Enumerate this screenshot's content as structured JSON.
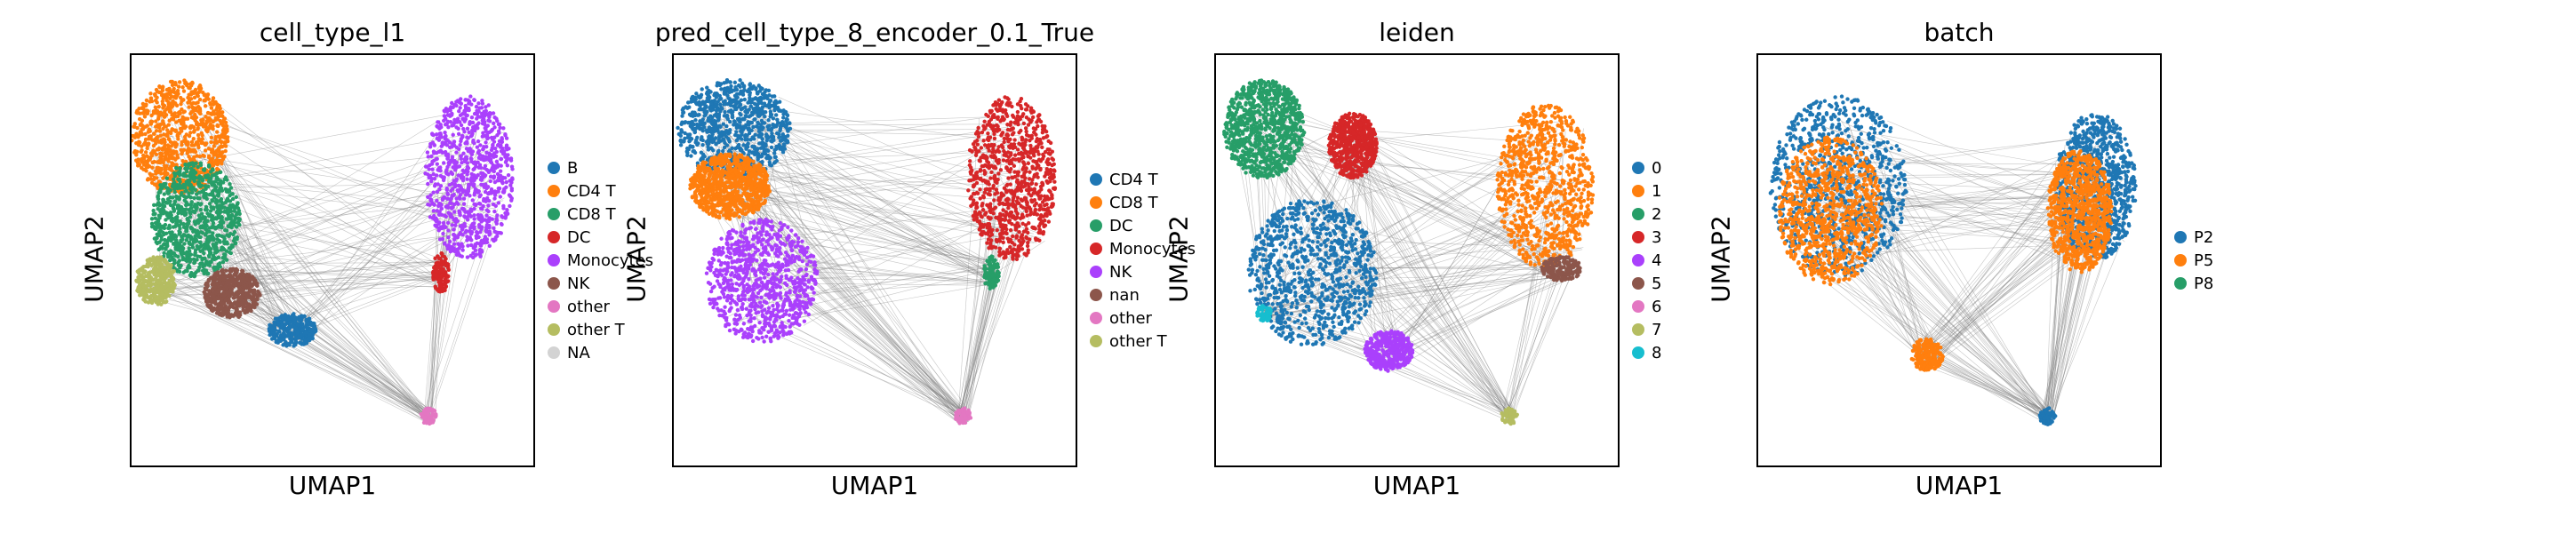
{
  "chart_data": [
    {
      "type": "scatter",
      "title": "cell_type_l1",
      "xlabel": "UMAP1",
      "ylabel": "UMAP2",
      "grid": false,
      "legend_position": "right",
      "legend": [
        {
          "label": "B",
          "color": "#1f77b4"
        },
        {
          "label": "CD4 T",
          "color": "#ff7f0e"
        },
        {
          "label": "CD8 T",
          "color": "#279e68"
        },
        {
          "label": "DC",
          "color": "#d62728"
        },
        {
          "label": "Monocytes",
          "color": "#aa40fc"
        },
        {
          "label": "NK",
          "color": "#8c564b"
        },
        {
          "label": "other",
          "color": "#e377c2"
        },
        {
          "label": "other T",
          "color": "#b5bd61"
        },
        {
          "label": "NA",
          "color": "#d3d3d3"
        }
      ],
      "clusters": [
        {
          "category": "CD4 T",
          "cx": 0.12,
          "cy": 0.8,
          "rx": 0.12,
          "ry": 0.14
        },
        {
          "category": "CD8 T",
          "cx": 0.16,
          "cy": 0.6,
          "rx": 0.11,
          "ry": 0.14
        },
        {
          "category": "NK",
          "cx": 0.25,
          "cy": 0.42,
          "rx": 0.07,
          "ry": 0.06
        },
        {
          "category": "other T",
          "cx": 0.06,
          "cy": 0.45,
          "rx": 0.05,
          "ry": 0.06
        },
        {
          "category": "B",
          "cx": 0.4,
          "cy": 0.33,
          "rx": 0.06,
          "ry": 0.04
        },
        {
          "category": "Monocytes",
          "cx": 0.84,
          "cy": 0.7,
          "rx": 0.11,
          "ry": 0.2
        },
        {
          "category": "DC",
          "cx": 0.77,
          "cy": 0.47,
          "rx": 0.02,
          "ry": 0.05
        },
        {
          "category": "other",
          "cx": 0.74,
          "cy": 0.12,
          "rx": 0.02,
          "ry": 0.02
        }
      ]
    },
    {
      "type": "scatter",
      "title": "pred_cell_type_8_encoder_0.1_True",
      "xlabel": "UMAP1",
      "ylabel": "UMAP2",
      "grid": false,
      "legend_position": "right",
      "legend": [
        {
          "label": "CD4 T",
          "color": "#1f77b4"
        },
        {
          "label": "CD8 T",
          "color": "#ff7f0e"
        },
        {
          "label": "DC",
          "color": "#279e68"
        },
        {
          "label": "Monocytes",
          "color": "#d62728"
        },
        {
          "label": "NK",
          "color": "#aa40fc"
        },
        {
          "label": "nan",
          "color": "#8c564b"
        },
        {
          "label": "other",
          "color": "#e377c2"
        },
        {
          "label": "other T",
          "color": "#b5bd61"
        }
      ],
      "clusters": [
        {
          "category": "CD4 T",
          "cx": 0.15,
          "cy": 0.82,
          "rx": 0.14,
          "ry": 0.12
        },
        {
          "category": "CD8 T",
          "cx": 0.14,
          "cy": 0.68,
          "rx": 0.1,
          "ry": 0.08
        },
        {
          "category": "NK",
          "cx": 0.22,
          "cy": 0.45,
          "rx": 0.14,
          "ry": 0.15
        },
        {
          "category": "Monocytes",
          "cx": 0.84,
          "cy": 0.7,
          "rx": 0.11,
          "ry": 0.2
        },
        {
          "category": "DC",
          "cx": 0.79,
          "cy": 0.47,
          "rx": 0.02,
          "ry": 0.04
        },
        {
          "category": "other",
          "cx": 0.72,
          "cy": 0.12,
          "rx": 0.02,
          "ry": 0.02
        }
      ]
    },
    {
      "type": "scatter",
      "title": "leiden",
      "xlabel": "UMAP1",
      "ylabel": "UMAP2",
      "grid": false,
      "legend_position": "right",
      "legend": [
        {
          "label": "0",
          "color": "#1f77b4"
        },
        {
          "label": "1",
          "color": "#ff7f0e"
        },
        {
          "label": "2",
          "color": "#279e68"
        },
        {
          "label": "3",
          "color": "#d62728"
        },
        {
          "label": "4",
          "color": "#aa40fc"
        },
        {
          "label": "5",
          "color": "#8c564b"
        },
        {
          "label": "6",
          "color": "#e377c2"
        },
        {
          "label": "7",
          "color": "#b5bd61"
        },
        {
          "label": "8",
          "color": "#17becf"
        }
      ],
      "clusters": [
        {
          "category": "2",
          "cx": 0.12,
          "cy": 0.82,
          "rx": 0.1,
          "ry": 0.12
        },
        {
          "category": "3",
          "cx": 0.34,
          "cy": 0.78,
          "rx": 0.06,
          "ry": 0.08
        },
        {
          "category": "0",
          "cx": 0.24,
          "cy": 0.47,
          "rx": 0.16,
          "ry": 0.18
        },
        {
          "category": "8",
          "cx": 0.12,
          "cy": 0.37,
          "rx": 0.02,
          "ry": 0.02
        },
        {
          "category": "4",
          "cx": 0.43,
          "cy": 0.28,
          "rx": 0.06,
          "ry": 0.05
        },
        {
          "category": "1",
          "cx": 0.82,
          "cy": 0.68,
          "rx": 0.12,
          "ry": 0.2
        },
        {
          "category": "5",
          "cx": 0.86,
          "cy": 0.48,
          "rx": 0.05,
          "ry": 0.03
        },
        {
          "category": "7",
          "cx": 0.73,
          "cy": 0.12,
          "rx": 0.02,
          "ry": 0.02
        }
      ]
    },
    {
      "type": "scatter",
      "title": "batch",
      "xlabel": "UMAP1",
      "ylabel": "UMAP2",
      "grid": false,
      "legend_position": "right",
      "legend": [
        {
          "label": "P2",
          "color": "#1f77b4"
        },
        {
          "label": "P5",
          "color": "#ff7f0e"
        },
        {
          "label": "P8",
          "color": "#279e68"
        }
      ],
      "clusters": [
        {
          "category": "P2",
          "cx": 0.2,
          "cy": 0.68,
          "rx": 0.17,
          "ry": 0.22
        },
        {
          "category": "P5",
          "cx": 0.18,
          "cy": 0.62,
          "rx": 0.13,
          "ry": 0.18
        },
        {
          "category": "P2",
          "cx": 0.84,
          "cy": 0.68,
          "rx": 0.1,
          "ry": 0.18
        },
        {
          "category": "P5",
          "cx": 0.8,
          "cy": 0.62,
          "rx": 0.08,
          "ry": 0.15
        },
        {
          "category": "P5",
          "cx": 0.42,
          "cy": 0.27,
          "rx": 0.04,
          "ry": 0.04
        },
        {
          "category": "P2",
          "cx": 0.72,
          "cy": 0.12,
          "rx": 0.02,
          "ry": 0.02
        }
      ]
    }
  ]
}
